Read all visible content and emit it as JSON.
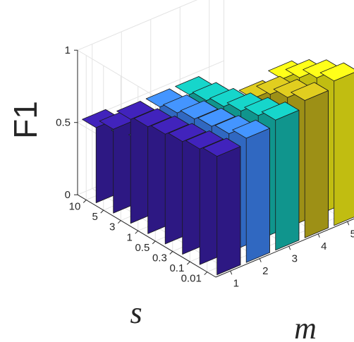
{
  "chart_data": {
    "type": "bar3",
    "title": "",
    "xlabel": "m",
    "ylabel": "s",
    "zlabel": "F1",
    "m_values": [
      "1",
      "2",
      "3",
      "4",
      "5"
    ],
    "s_values": [
      "0.01",
      "0.1",
      "0.3",
      "0.5",
      "1",
      "3",
      "5",
      "10"
    ],
    "zlim": [
      0,
      1
    ],
    "z_ticks": [
      "0",
      "0.5",
      "1"
    ],
    "grid": true,
    "series": [
      {
        "m": "1",
        "color": "#3a1fa8",
        "values": [
          0.82,
          0.8,
          0.78,
          0.76,
          0.74,
          0.72,
          0.58,
          0.52
        ]
      },
      {
        "m": "2",
        "color": "#3d85f7",
        "values": [
          0.86,
          0.82,
          0.8,
          0.78,
          0.75,
          0.72,
          0.4,
          0.36
        ]
      },
      {
        "m": "3",
        "color": "#14bfb5",
        "values": [
          0.9,
          0.86,
          0.82,
          0.78,
          0.75,
          0.72,
          0.3,
          0.34
        ]
      },
      {
        "m": "4",
        "color": "#c9b81c",
        "values": [
          0.95,
          0.9,
          0.85,
          0.75,
          0.5,
          0.32,
          0.3,
          0.32
        ]
      },
      {
        "m": "5",
        "color": "#f8f216",
        "values": [
          1.0,
          0.95,
          0.88,
          0.8,
          0.45,
          0.25,
          0.3,
          0.2
        ]
      }
    ]
  }
}
